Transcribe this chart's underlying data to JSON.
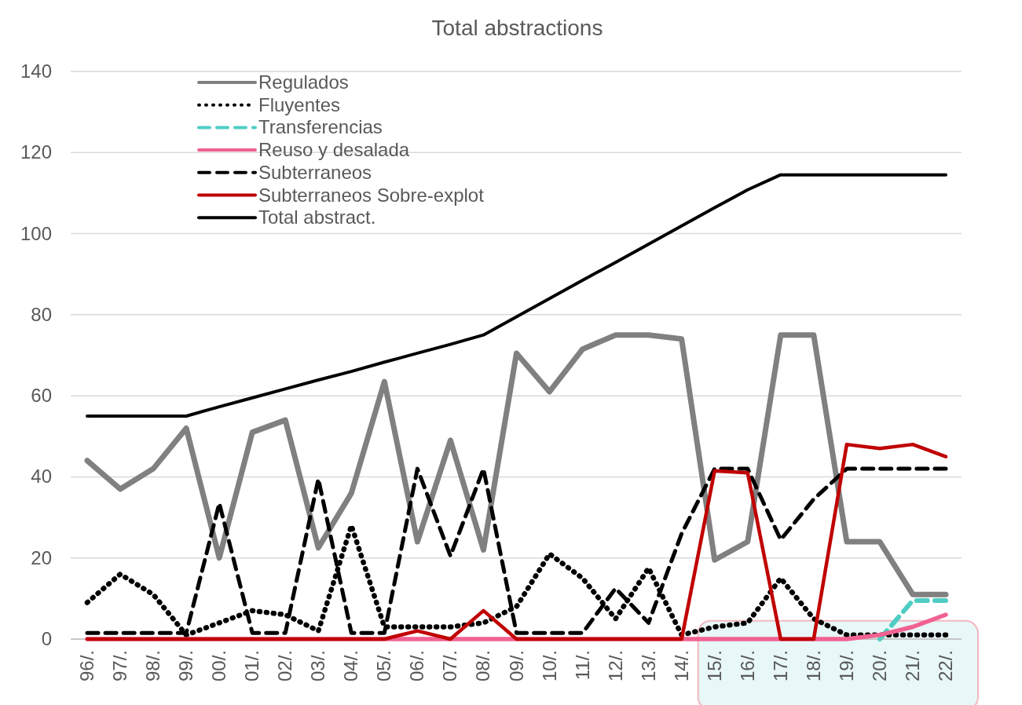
{
  "chart_data": {
    "type": "line",
    "title": "Total abstractions",
    "categories": [
      "96/.",
      "97/.",
      "98/.",
      "99/.",
      "00/.",
      "01/.",
      "02/.",
      "03/.",
      "04/.",
      "05/.",
      "06/.",
      "07/.",
      "08/.",
      "09/.",
      "10/.",
      "11/.",
      "12/.",
      "13/.",
      "14/.",
      "15/.",
      "16/.",
      "17/.",
      "18/.",
      "19/.",
      "20/.",
      "21/.",
      "22/."
    ],
    "series": [
      {
        "name": "Regulados",
        "color": "#808080",
        "line_style": "solid",
        "values": [
          44,
          37,
          42,
          52,
          20,
          51,
          54,
          22.5,
          36,
          63.5,
          24,
          49,
          22,
          70.5,
          61,
          71.5,
          75,
          75,
          74,
          19.5,
          24,
          75,
          75,
          24,
          24,
          11,
          11
        ]
      },
      {
        "name": "Fluyentes",
        "color": "#000000",
        "line_style": "dotted",
        "values": [
          9,
          16,
          11,
          1,
          4,
          7,
          6,
          2,
          28,
          3,
          3,
          3,
          4,
          8,
          21,
          15,
          5,
          17.5,
          1,
          3,
          4,
          15,
          5,
          1,
          1,
          1,
          1
        ]
      },
      {
        "name": "Transferencias",
        "color": "#4ecdc4",
        "line_style": "dashed",
        "values": [
          null,
          null,
          null,
          null,
          null,
          null,
          null,
          null,
          null,
          null,
          null,
          null,
          null,
          null,
          null,
          null,
          null,
          null,
          null,
          null,
          null,
          null,
          null,
          null,
          0,
          9.5,
          9.5
        ]
      },
      {
        "name": "Reuso y desalada",
        "color": "#f06292",
        "line_style": "solid",
        "values": [
          0,
          0,
          0,
          0,
          0,
          0,
          0,
          0,
          0,
          0,
          0,
          0,
          0,
          0,
          0,
          0,
          0,
          0,
          0,
          0,
          0,
          0,
          0,
          0,
          1,
          3,
          6
        ]
      },
      {
        "name": "Subterraneos",
        "color": "#000000",
        "line_style": "dashed",
        "values": [
          1.5,
          1.5,
          1.5,
          1.5,
          33.5,
          1.5,
          1.5,
          39.5,
          1.5,
          1.5,
          42,
          20.5,
          42,
          1.5,
          1.5,
          1.5,
          12.5,
          4,
          26,
          42,
          42,
          24.5,
          34.5,
          42,
          42,
          42,
          42
        ]
      },
      {
        "name": "Subterraneos Sobre-explot",
        "color": "#c00000",
        "line_style": "solid",
        "values": [
          0,
          0,
          0,
          0,
          0,
          0,
          0,
          0,
          0,
          0,
          2,
          0,
          7,
          0,
          0,
          0,
          0,
          0,
          0,
          41.5,
          41,
          0,
          0,
          48,
          47,
          48,
          45
        ]
      },
      {
        "name": "Total abstract.",
        "color": "#000000",
        "line_style": "solid",
        "values": [
          55,
          55,
          55,
          55,
          57.3,
          59.5,
          61.7,
          63.9,
          66,
          68.3,
          70.5,
          72.7,
          75,
          79.5,
          84,
          88.5,
          92.9,
          97.4,
          101.9,
          106.4,
          110.8,
          114.5,
          114.5,
          114.5,
          114.5,
          114.5,
          114.5
        ]
      }
    ],
    "ylim": [
      0,
      140
    ],
    "yticks": [
      0,
      20,
      40,
      60,
      80,
      100,
      120,
      140
    ],
    "grid": "y",
    "legend": "top left"
  }
}
